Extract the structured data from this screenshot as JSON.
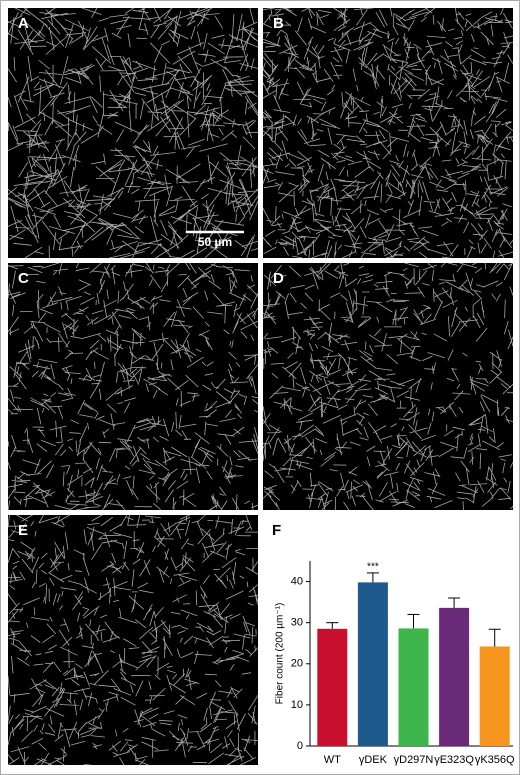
{
  "panels": [
    {
      "label": "A"
    },
    {
      "label": "B"
    },
    {
      "label": "C"
    },
    {
      "label": "D"
    },
    {
      "label": "E"
    }
  ],
  "scale_bar": "50 µm",
  "chart_data": {
    "type": "bar",
    "panel_label": "F",
    "y_label": "Fiber count (200 µm⁻¹)",
    "categories": [
      "WT",
      "γDEK",
      "γD297N",
      "γE323Q",
      "γK356Q"
    ],
    "values": [
      28.5,
      39.8,
      28.6,
      33.6,
      24.2
    ],
    "errors": [
      1.5,
      2.3,
      3.4,
      2.4,
      4.2
    ],
    "colors": [
      "#c8102e",
      "#1f5a8c",
      "#3cb54a",
      "#6a2a7a",
      "#f7941d"
    ],
    "annotations": [
      {
        "category": 1,
        "text": "***"
      }
    ],
    "ylim": [
      0,
      45
    ],
    "yticks": [
      0,
      10,
      20,
      30,
      40
    ]
  }
}
